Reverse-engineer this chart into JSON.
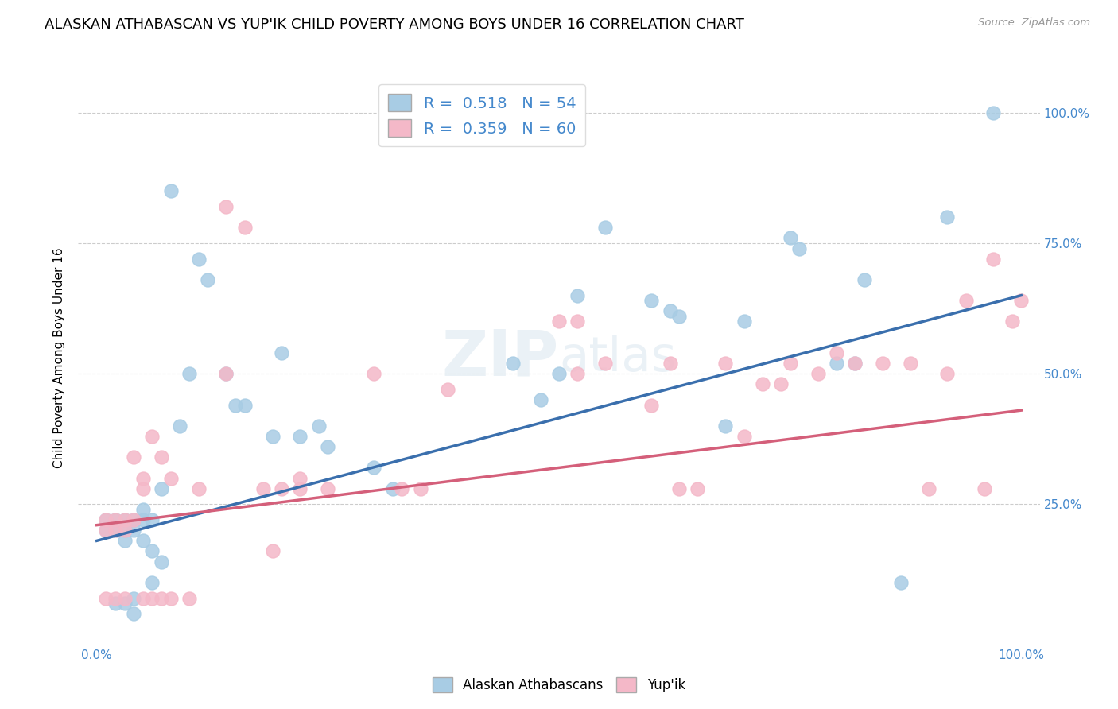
{
  "title": "ALASKAN ATHABASCAN VS YUP'IK CHILD POVERTY AMONG BOYS UNDER 16 CORRELATION CHART",
  "source": "Source: ZipAtlas.com",
  "ylabel": "Child Poverty Among Boys Under 16",
  "legend_blue_R": "0.518",
  "legend_blue_N": "54",
  "legend_pink_R": "0.359",
  "legend_pink_N": "60",
  "blue_color": "#a8cce4",
  "pink_color": "#f4b8c8",
  "line_blue": "#3a6fad",
  "line_pink": "#d45f7a",
  "blue_scatter_x": [
    0.01,
    0.01,
    0.02,
    0.02,
    0.02,
    0.03,
    0.03,
    0.03,
    0.03,
    0.04,
    0.04,
    0.04,
    0.04,
    0.05,
    0.05,
    0.05,
    0.06,
    0.06,
    0.06,
    0.07,
    0.07,
    0.08,
    0.09,
    0.1,
    0.11,
    0.12,
    0.14,
    0.15,
    0.16,
    0.19,
    0.2,
    0.22,
    0.24,
    0.25,
    0.3,
    0.32,
    0.45,
    0.48,
    0.5,
    0.52,
    0.55,
    0.6,
    0.62,
    0.63,
    0.68,
    0.7,
    0.75,
    0.76,
    0.8,
    0.82,
    0.83,
    0.87,
    0.92,
    0.97
  ],
  "blue_scatter_y": [
    0.22,
    0.2,
    0.22,
    0.2,
    0.06,
    0.22,
    0.2,
    0.18,
    0.06,
    0.22,
    0.2,
    0.07,
    0.04,
    0.24,
    0.22,
    0.18,
    0.22,
    0.16,
    0.1,
    0.28,
    0.14,
    0.85,
    0.4,
    0.5,
    0.72,
    0.68,
    0.5,
    0.44,
    0.44,
    0.38,
    0.54,
    0.38,
    0.4,
    0.36,
    0.32,
    0.28,
    0.52,
    0.45,
    0.5,
    0.65,
    0.78,
    0.64,
    0.62,
    0.61,
    0.4,
    0.6,
    0.76,
    0.74,
    0.52,
    0.52,
    0.68,
    0.1,
    0.8,
    1.0
  ],
  "pink_scatter_x": [
    0.01,
    0.01,
    0.01,
    0.02,
    0.02,
    0.02,
    0.03,
    0.03,
    0.03,
    0.04,
    0.04,
    0.05,
    0.05,
    0.05,
    0.06,
    0.06,
    0.07,
    0.07,
    0.08,
    0.08,
    0.1,
    0.11,
    0.14,
    0.14,
    0.16,
    0.18,
    0.19,
    0.2,
    0.22,
    0.22,
    0.25,
    0.3,
    0.33,
    0.35,
    0.38,
    0.5,
    0.52,
    0.52,
    0.55,
    0.6,
    0.62,
    0.63,
    0.65,
    0.68,
    0.7,
    0.72,
    0.74,
    0.75,
    0.78,
    0.8,
    0.82,
    0.85,
    0.88,
    0.9,
    0.92,
    0.94,
    0.96,
    0.97,
    0.99,
    1.0
  ],
  "pink_scatter_y": [
    0.22,
    0.2,
    0.07,
    0.22,
    0.2,
    0.07,
    0.22,
    0.2,
    0.07,
    0.34,
    0.22,
    0.3,
    0.28,
    0.07,
    0.07,
    0.38,
    0.07,
    0.34,
    0.3,
    0.07,
    0.07,
    0.28,
    0.82,
    0.5,
    0.78,
    0.28,
    0.16,
    0.28,
    0.28,
    0.3,
    0.28,
    0.5,
    0.28,
    0.28,
    0.47,
    0.6,
    0.6,
    0.5,
    0.52,
    0.44,
    0.52,
    0.28,
    0.28,
    0.52,
    0.38,
    0.48,
    0.48,
    0.52,
    0.5,
    0.54,
    0.52,
    0.52,
    0.52,
    0.28,
    0.5,
    0.64,
    0.28,
    0.72,
    0.6,
    0.64
  ],
  "background_color": "#ffffff",
  "grid_color": "#cccccc",
  "title_fontsize": 13,
  "axis_label_fontsize": 11,
  "tick_fontsize": 11,
  "legend_fontsize": 14,
  "blue_line_intercept": 0.18,
  "blue_line_slope": 0.47,
  "pink_line_intercept": 0.21,
  "pink_line_slope": 0.22
}
